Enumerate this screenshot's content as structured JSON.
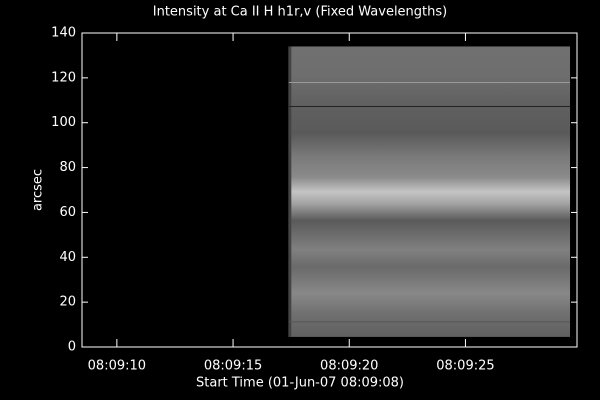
{
  "chart_data": {
    "type": "image",
    "title": "Intensity at Ca II H h1r,v (Fixed Wavelengths)",
    "x_label": "Start Time (01-Jun-07 08:09:08)",
    "y_label": "arcsec",
    "xlim": [
      8.5,
      29.8
    ],
    "xticks": [
      {
        "value": 10,
        "label": "08:09:10"
      },
      {
        "value": 15,
        "label": "08:09:15"
      },
      {
        "value": 20,
        "label": "08:09:20"
      },
      {
        "value": 25,
        "label": "08:09:25"
      }
    ],
    "ylim": [
      0,
      140
    ],
    "yticks": [
      0,
      20,
      40,
      60,
      80,
      100,
      120,
      140
    ],
    "image_x": [
      17.4,
      29.5
    ],
    "image_y": [
      4.5,
      134
    ]
  }
}
